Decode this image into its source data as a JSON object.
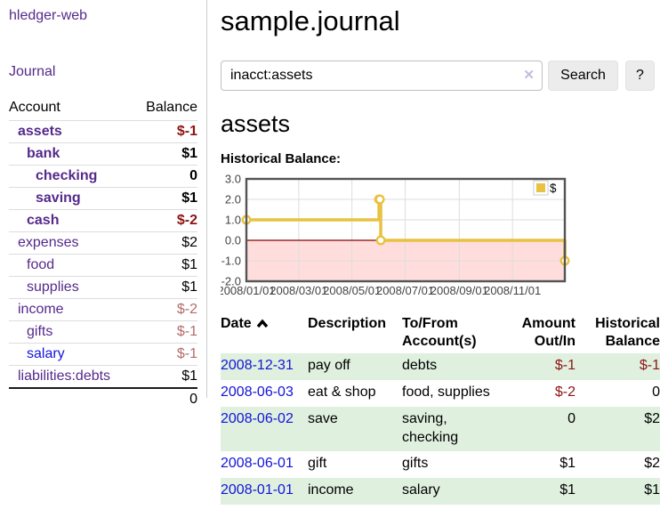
{
  "colors": {
    "purple_link": "#552a8b",
    "blue_link": "#1414d9",
    "negative_strong": "#8e1414",
    "negative_muted": "#b36b6b",
    "row_green": "#dff0df",
    "chart_line": "#e8c240",
    "chart_negative_bg": "#ffdddd",
    "chart_zero_line": "#8b0000",
    "chart_border": "#545454"
  },
  "sidebar": {
    "app_title": "hledger-web",
    "nav": {
      "journal": "Journal"
    },
    "accounts": {
      "headers": {
        "account": "Account",
        "balance": "Balance"
      },
      "rows": [
        {
          "name": "assets",
          "balance": "$-1"
        },
        {
          "name": "bank",
          "balance": "$1"
        },
        {
          "name": "checking",
          "balance": "0"
        },
        {
          "name": "saving",
          "balance": "$1"
        },
        {
          "name": "cash",
          "balance": "$-2"
        },
        {
          "name": "expenses",
          "balance": "$2"
        },
        {
          "name": "food",
          "balance": "$1"
        },
        {
          "name": "supplies",
          "balance": "$1"
        },
        {
          "name": "income",
          "balance": "$-2"
        },
        {
          "name": "gifts",
          "balance": "$-1"
        },
        {
          "name": "salary",
          "balance": "$-1"
        },
        {
          "name": "liabilities:debts",
          "balance": "$1"
        }
      ],
      "total": "0"
    }
  },
  "main": {
    "title": "sample.journal",
    "search": {
      "value": "inacct:assets",
      "clear_icon": "✕",
      "search_button": "Search",
      "help_button": "?"
    },
    "account_heading": "assets",
    "chart_label": "Historical Balance:"
  },
  "chart_data": {
    "type": "line",
    "title": "Historical Balance",
    "steps": true,
    "series": [
      {
        "name": "$",
        "color": "#e8c240",
        "points": [
          {
            "date": "2008-01-01",
            "value": 1
          },
          {
            "date": "2008-06-01",
            "value": 2
          },
          {
            "date": "2008-06-02",
            "value": 2
          },
          {
            "date": "2008-06-03",
            "value": 0
          },
          {
            "date": "2008-12-31",
            "value": -1
          }
        ]
      }
    ],
    "x_ticks": [
      "2008/01/01",
      "2008/03/01",
      "2008/05/01",
      "2008/07/01",
      "2008/09/01",
      "2008/11/01"
    ],
    "y_ticks": [
      3.0,
      2.0,
      1.0,
      0.0,
      -1.0,
      -2.0
    ],
    "xlim": [
      "2008-01-01",
      "2008-12-31"
    ],
    "ylim": [
      -2,
      3
    ],
    "grid": true,
    "legend_position": "top-right",
    "negative_region_color": "#ffdddd",
    "zero_line_color": "#8b0000"
  },
  "transactions": {
    "headers": {
      "date": "Date",
      "description": "Description",
      "account": "To/From Account(s)",
      "amount": "Amount Out/In",
      "balance": "Historical Balance"
    },
    "rows": [
      {
        "date": "2008-12-31",
        "description": "pay off",
        "account": "debts",
        "amount": "$-1",
        "balance": "$-1"
      },
      {
        "date": "2008-06-03",
        "description": "eat & shop",
        "account": "food, supplies",
        "amount": "$-2",
        "balance": "0"
      },
      {
        "date": "2008-06-02",
        "description": "save",
        "account": "saving, checking",
        "amount": "0",
        "balance": "$2"
      },
      {
        "date": "2008-06-01",
        "description": "gift",
        "account": "gifts",
        "amount": "$1",
        "balance": "$2"
      },
      {
        "date": "2008-01-01",
        "description": "income",
        "account": "salary",
        "amount": "$1",
        "balance": "$1"
      }
    ]
  }
}
